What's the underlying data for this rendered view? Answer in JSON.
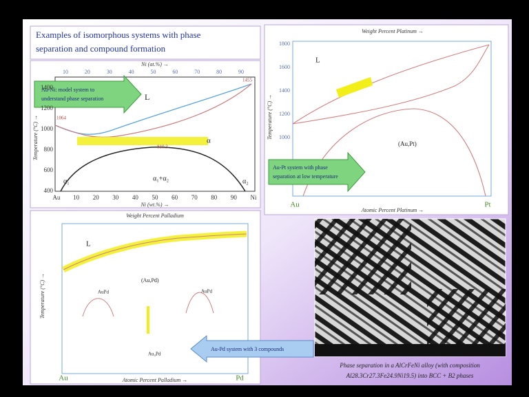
{
  "title": [
    "Examples of isomorphous systems with phase",
    "separation and compound formation"
  ],
  "au_ni": {
    "top_axis_label": "Ni (at.%) →",
    "top_ticks": [
      "10",
      "20",
      "30",
      "40",
      "50",
      "60",
      "70",
      "80",
      "90"
    ],
    "y_label": "Temperature (°C) →",
    "y_ticks": [
      "400",
      "600",
      "800",
      "1000",
      "1200",
      "1400"
    ],
    "x_ticks": [
      "Au",
      "10",
      "20",
      "30",
      "40",
      "50",
      "60",
      "70",
      "80",
      "90",
      "Ni"
    ],
    "x_label": "Ni (wt.%) →",
    "callout": [
      "Au-Ni: model system to",
      "understand phase separation"
    ],
    "labels": [
      "L",
      "α",
      "α₁+α₂",
      "α₁",
      "α₂",
      "1064",
      "1455",
      "810.3"
    ]
  },
  "au_pt": {
    "top_axis_label": "Weight Percent Platinum →",
    "y_label": "Temperature (°C) →",
    "y_ticks": [
      "1000",
      "1200",
      "1400",
      "1600",
      "1800"
    ],
    "x_ticks": [
      "Au",
      "Pt"
    ],
    "x_label": "Atomic Percent Platinum →",
    "callout": [
      "Au-Pt system with phase",
      "separation at low temperature"
    ],
    "labels": [
      "L",
      "(Au,Pt)"
    ]
  },
  "au_pd": {
    "top_axis_label": "Weight Percent Palladium",
    "y_label": "Temperature (°C) →",
    "x_ticks": [
      "Au",
      "Pd"
    ],
    "x_label": "Atomic Percent Palladium →",
    "callout": "Au-Pd system with 3 compounds",
    "labels": [
      "L",
      "(Au,Pd)",
      "AuPd",
      "AuPd",
      "Au₃Pd"
    ]
  },
  "micrograph": {
    "caption": [
      "Phase separation in a AlCrFeNi alloy (with composition",
      "Al28.3Cr27.3Fe24.9Ni19.5) into BCC + B2 phases"
    ]
  }
}
